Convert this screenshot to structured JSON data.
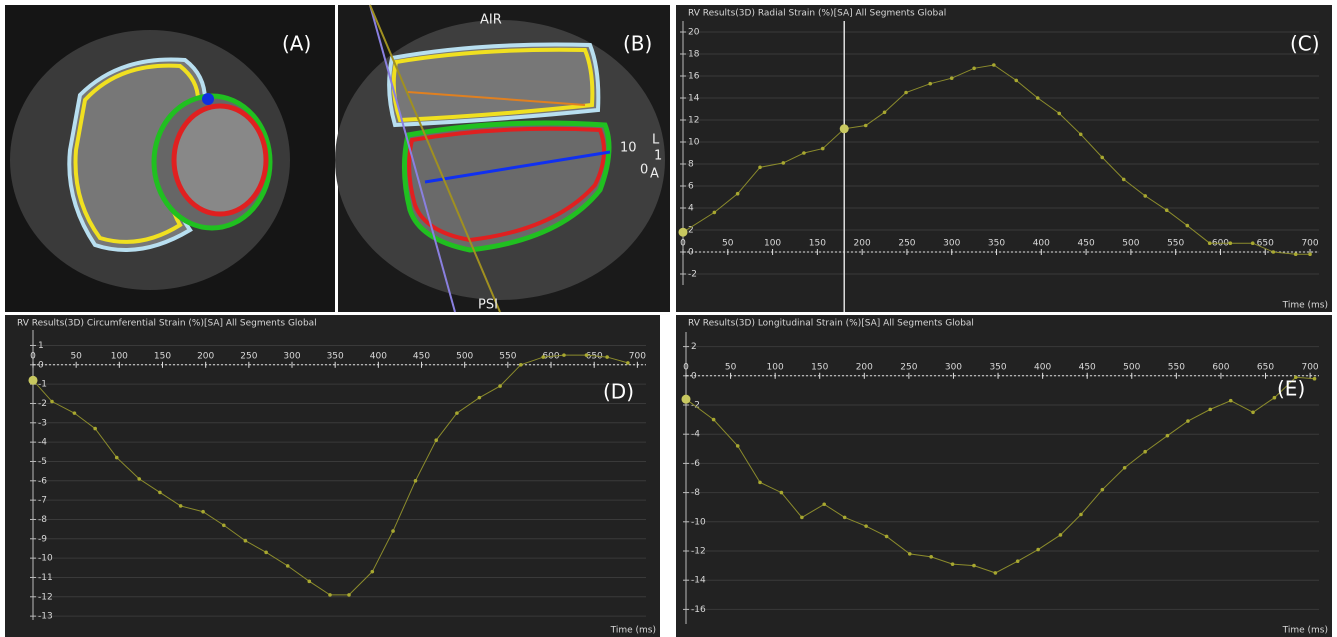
{
  "images": [
    {
      "panel_label": "(A)"
    },
    {
      "panel_label": "(B)",
      "annotations": [
        "AIR",
        "PSI",
        "10",
        "L",
        "1",
        "0",
        "A"
      ]
    }
  ],
  "chart_data": [
    {
      "type": "line",
      "panel_label": "(C)",
      "title": "RV Results(3D) Radial Strain (%)[SA] All Segments Global",
      "x_label": "Time (ms)",
      "x": [
        0,
        35,
        61,
        86,
        112,
        135,
        156,
        180,
        204,
        225,
        249,
        276,
        300,
        325,
        347,
        372,
        396,
        420,
        444,
        468,
        492,
        516,
        540,
        563,
        588,
        611,
        636,
        659,
        684,
        700
      ],
      "values": [
        1.8,
        3.6,
        5.3,
        7.7,
        8.1,
        9.0,
        9.4,
        11.2,
        11.5,
        12.7,
        14.5,
        15.3,
        15.8,
        16.7,
        17.0,
        15.6,
        14.0,
        12.6,
        10.7,
        8.6,
        6.6,
        5.1,
        3.8,
        2.4,
        0.8,
        0.8,
        0.8,
        0,
        -0.2,
        -0.2
      ],
      "color": "#8c8c2c",
      "cursor": 180,
      "xlim": [
        0,
        710
      ],
      "xticks": [
        0,
        50,
        100,
        150,
        200,
        250,
        300,
        350,
        400,
        450,
        500,
        550,
        600,
        650,
        700
      ],
      "ylim": [
        -3,
        21
      ],
      "yticks": [
        -2,
        0,
        2,
        4,
        6,
        8,
        10,
        12,
        14,
        16,
        18,
        20
      ],
      "grid": true
    },
    {
      "type": "line",
      "panel_label": "(D)",
      "title": "RV Results(3D) Circumferential Strain (%)[SA] All Segments Global",
      "x_label": "Time (ms)",
      "x": [
        0,
        22,
        48,
        72,
        97,
        123,
        147,
        171,
        197,
        221,
        246,
        270,
        295,
        320,
        344,
        366,
        393,
        417,
        443,
        467,
        491,
        517,
        541,
        565,
        591,
        615,
        641,
        665,
        689
      ],
      "values": [
        -0.8,
        -1.9,
        -2.5,
        -3.3,
        -4.8,
        -5.9,
        -6.6,
        -7.3,
        -7.6,
        -8.3,
        -9.1,
        -9.7,
        -10.4,
        -11.2,
        -11.9,
        -11.9,
        -10.7,
        -8.6,
        -6.0,
        -3.9,
        -2.5,
        -1.7,
        -1.1,
        0,
        0.4,
        0.5,
        0.5,
        0.4,
        0.1
      ],
      "color": "#8c8c2c",
      "xlim": [
        0,
        710
      ],
      "xticks": [
        0,
        50,
        100,
        150,
        200,
        250,
        300,
        350,
        400,
        450,
        500,
        550,
        600,
        650,
        700
      ],
      "ylim": [
        -13.2,
        1.8
      ],
      "yticks": [
        1,
        0,
        -1,
        -2,
        -3,
        -4,
        -5,
        -6,
        -7,
        -8,
        -9,
        -10,
        -11,
        -12,
        -13
      ],
      "grid": true
    },
    {
      "type": "line",
      "panel_label": "(E)",
      "title": "RV Results(3D) Longitudinal Strain (%)[SA] All Segments Global",
      "x_label": "Time (ms)",
      "x": [
        0,
        31,
        58,
        83,
        107,
        130,
        155,
        178,
        202,
        225,
        251,
        275,
        299,
        323,
        347,
        372,
        395,
        420,
        443,
        467,
        492,
        515,
        540,
        563,
        588,
        611,
        636,
        660,
        684,
        705
      ],
      "values": [
        -1.6,
        -3.0,
        -4.8,
        -7.3,
        -8.0,
        -9.7,
        -8.8,
        -9.7,
        -10.3,
        -11.0,
        -12.2,
        -12.4,
        -12.9,
        -13.0,
        -13.5,
        -12.7,
        -11.9,
        -10.9,
        -9.5,
        -7.8,
        -6.3,
        -5.2,
        -4.1,
        -3.1,
        -2.3,
        -1.7,
        -2.5,
        -1.5,
        -0.1,
        -0.2
      ],
      "color": "#8c8c2c",
      "xlim": [
        0,
        710
      ],
      "xticks": [
        0,
        50,
        100,
        150,
        200,
        250,
        300,
        350,
        400,
        450,
        500,
        550,
        600,
        650,
        700
      ],
      "ylim": [
        -17,
        3
      ],
      "yticks": [
        2,
        0,
        -2,
        -4,
        -6,
        -8,
        -10,
        -12,
        -14,
        -16
      ],
      "grid": true
    }
  ]
}
